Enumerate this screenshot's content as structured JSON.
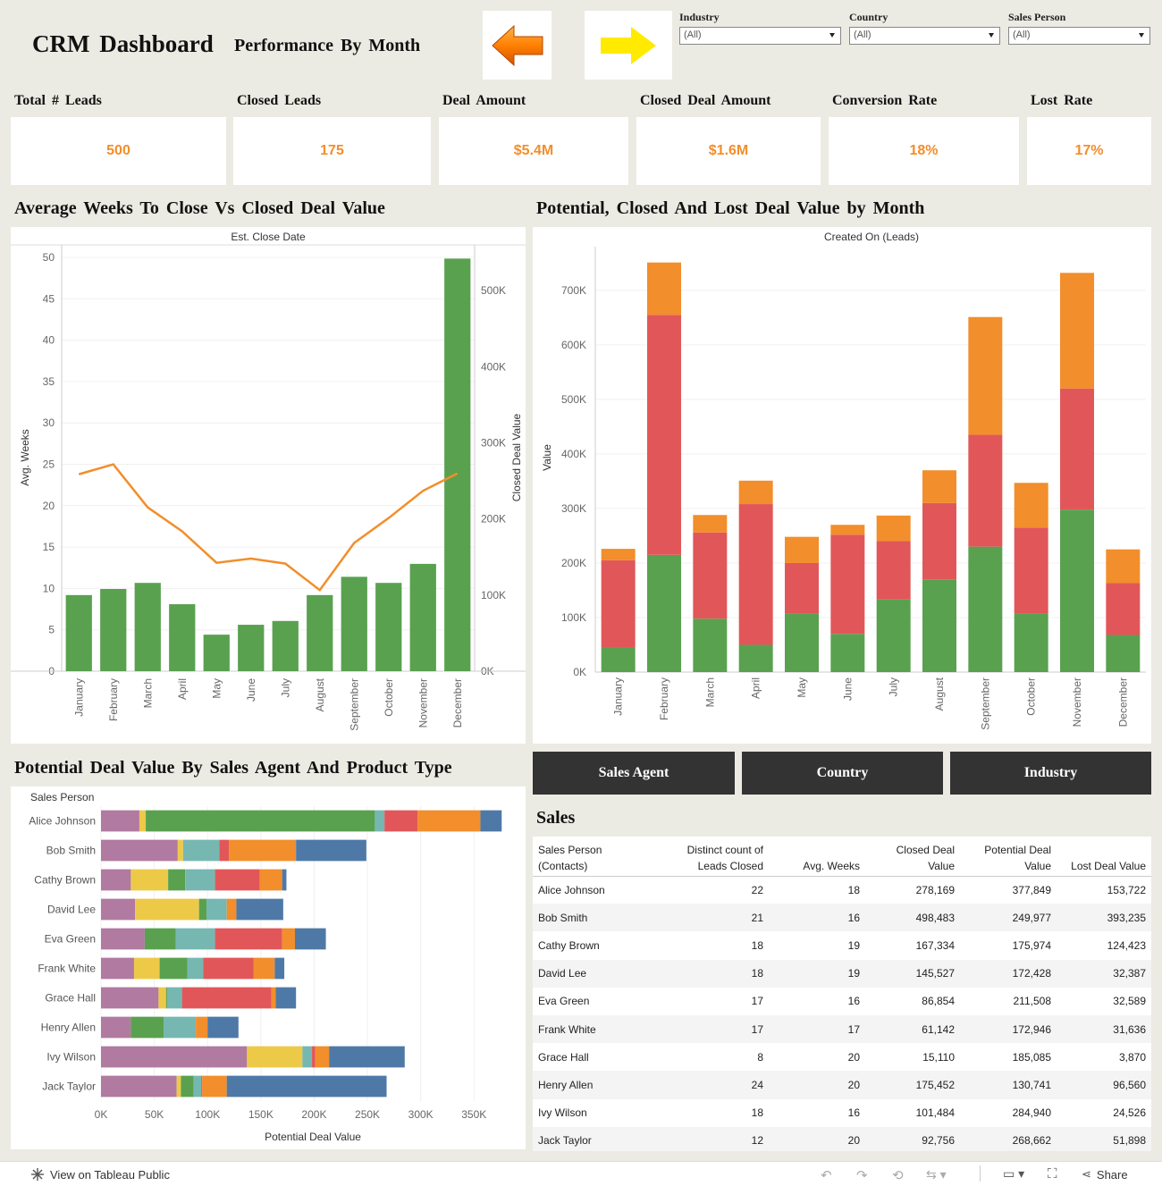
{
  "header": {
    "title": "CRM  Dashboard",
    "subtitle": "Performance  By  Month"
  },
  "nav": {
    "back_icon": "orange-arrow-left-icon",
    "forward_icon": "yellow-arrow-right-icon"
  },
  "filters": [
    {
      "label": "Industry",
      "value": "(All)"
    },
    {
      "label": "Country",
      "value": "(All)"
    },
    {
      "label": "Sales  Person",
      "value": "(All)"
    }
  ],
  "kpis": [
    {
      "label": "Total  #  Leads",
      "value": "500"
    },
    {
      "label": "Closed  Leads",
      "value": "175"
    },
    {
      "label": "Deal  Amount",
      "value": "$5.4M"
    },
    {
      "label": "Closed  Deal  Amount",
      "value": "$1.6M"
    },
    {
      "label": "Conversion  Rate",
      "value": "18%"
    },
    {
      "label": "Lost  Rate",
      "value": "17%"
    }
  ],
  "sections": {
    "weeks_vs_value": "Average  Weeks  To  Close  Vs  Closed  Deal  Value",
    "by_month": "Potential,  Closed  And  Lost  Deal  Value  by  Month",
    "by_agent": "Potential  Deal  Value  By  Sales  Agent  And  Product  Type",
    "sales": "Sales"
  },
  "tabs": [
    "Sales  Agent",
    "Country",
    "Industry"
  ],
  "colors": {
    "accent": "#f28e2b",
    "green": "#59a14f",
    "red": "#e15759",
    "dark": "#333333"
  },
  "chart_data": [
    {
      "type": "bar",
      "title": "Est. Close Date",
      "categories": [
        "January",
        "February",
        "March",
        "April",
        "May",
        "June",
        "July",
        "August",
        "September",
        "October",
        "November",
        "December"
      ],
      "ylabel": "Avg. Weeks",
      "y2label": "Closed Deal Value",
      "ylim": [
        0,
        50
      ],
      "y2lim": [
        0,
        560000
      ],
      "yticks": [
        0,
        5,
        10,
        15,
        20,
        25,
        30,
        35,
        40,
        45,
        50
      ],
      "y2ticks": [
        0,
        100000,
        200000,
        300000,
        400000,
        500000
      ],
      "y2ticklabels": [
        "0K",
        "100K",
        "200K",
        "300K",
        "400K",
        "500K"
      ],
      "series": [
        {
          "name": "Closed Deal Value",
          "type": "bar",
          "axis": "right",
          "color": "#59a14f",
          "values": [
            100000,
            108000,
            116000,
            88000,
            48000,
            61000,
            66000,
            100000,
            124000,
            116000,
            141000,
            542000
          ]
        },
        {
          "name": "Avg. Weeks",
          "type": "line",
          "axis": "left",
          "color": "#f28e2b",
          "values": [
            23.8,
            25.0,
            19.8,
            16.9,
            13.1,
            13.6,
            13.0,
            9.8,
            15.5,
            18.5,
            21.8,
            23.9
          ]
        }
      ]
    },
    {
      "type": "bar",
      "stacked": true,
      "title": "Created On (Leads)",
      "categories": [
        "January",
        "February",
        "March",
        "April",
        "May",
        "June",
        "July",
        "August",
        "September",
        "October",
        "November",
        "December"
      ],
      "ylabel": "Value",
      "ylim": [
        0,
        780000
      ],
      "yticks": [
        0,
        100000,
        200000,
        300000,
        400000,
        500000,
        600000,
        700000
      ],
      "yticklabels": [
        "0K",
        "100K",
        "200K",
        "300K",
        "400K",
        "500K",
        "600K",
        "700K"
      ],
      "series": [
        {
          "name": "Closed",
          "color": "#59a14f",
          "values": [
            45000,
            215000,
            98000,
            50000,
            108000,
            70000,
            133000,
            170000,
            230000,
            108000,
            298000,
            68000
          ]
        },
        {
          "name": "Lost",
          "color": "#e15759",
          "values": [
            160000,
            440000,
            158000,
            258000,
            92000,
            182000,
            107000,
            140000,
            205000,
            157000,
            222000,
            95000
          ]
        },
        {
          "name": "Potential",
          "color": "#f28e2b",
          "values": [
            21000,
            96000,
            32000,
            43000,
            48000,
            18000,
            47000,
            60000,
            216000,
            82000,
            212000,
            62000
          ]
        }
      ]
    },
    {
      "type": "bar",
      "orientation": "horizontal",
      "stacked": true,
      "header": "Sales Person",
      "xlabel": "Potential Deal Value",
      "xlim": [
        0,
        385000
      ],
      "xticks": [
        0,
        50000,
        100000,
        150000,
        200000,
        250000,
        300000,
        350000
      ],
      "xticklabels": [
        "0K",
        "50K",
        "100K",
        "150K",
        "200K",
        "250K",
        "300K",
        "350K"
      ],
      "categories": [
        "Alice Johnson",
        "Bob Smith",
        "Cathy Brown",
        "David Lee",
        "Eva Green",
        "Frank White",
        "Grace Hall",
        "Henry Allen",
        "Ivy Wilson",
        "Jack Taylor"
      ],
      "segment_colors": [
        "#b07aa1",
        "#edc948",
        "#59a14f",
        "#76b7b2",
        "#e15759",
        "#f28e2b",
        "#4e79a7"
      ],
      "series": [
        {
          "color": "#b07aa1",
          "values": [
            36000,
            72000,
            28000,
            32000,
            41000,
            31000,
            54000,
            28000,
            137000,
            71000
          ]
        },
        {
          "color": "#edc948",
          "values": [
            6000,
            5000,
            35000,
            60000,
            0,
            24000,
            7000,
            0,
            52000,
            4000
          ]
        },
        {
          "color": "#59a14f",
          "values": [
            215000,
            0,
            16000,
            7000,
            29000,
            26000,
            1000,
            31000,
            0,
            12000
          ]
        },
        {
          "color": "#76b7b2",
          "values": [
            9000,
            34000,
            28000,
            19000,
            37000,
            15000,
            14000,
            30000,
            9000,
            7000
          ]
        },
        {
          "color": "#e15759",
          "values": [
            31000,
            9000,
            42000,
            0,
            63000,
            47000,
            84000,
            0,
            3000,
            1000
          ]
        },
        {
          "color": "#f28e2b",
          "values": [
            59000,
            63000,
            21000,
            9000,
            12000,
            20000,
            4000,
            11000,
            13000,
            23000
          ]
        },
        {
          "color": "#4e79a7",
          "values": [
            20000,
            66000,
            4000,
            44000,
            29000,
            9000,
            19000,
            29000,
            71000,
            150000
          ]
        }
      ]
    }
  ],
  "sales_table": {
    "columns": [
      "Sales Person (Contacts)",
      "Distinct count of Leads Closed",
      "Avg. Weeks",
      "Closed Deal Value",
      "Potential Deal Value",
      "Lost Deal Value"
    ],
    "rows": [
      [
        "Alice Johnson",
        "22",
        "18",
        "278,169",
        "377,849",
        "153,722"
      ],
      [
        "Bob Smith",
        "21",
        "16",
        "498,483",
        "249,977",
        "393,235"
      ],
      [
        "Cathy Brown",
        "18",
        "19",
        "167,334",
        "175,974",
        "124,423"
      ],
      [
        "David Lee",
        "18",
        "19",
        "145,527",
        "172,428",
        "32,387"
      ],
      [
        "Eva Green",
        "17",
        "16",
        "86,854",
        "211,508",
        "32,589"
      ],
      [
        "Frank White",
        "17",
        "17",
        "61,142",
        "172,946",
        "31,636"
      ],
      [
        "Grace Hall",
        "8",
        "20",
        "15,110",
        "185,085",
        "3,870"
      ],
      [
        "Henry Allen",
        "24",
        "20",
        "175,452",
        "130,741",
        "96,560"
      ],
      [
        "Ivy Wilson",
        "18",
        "16",
        "101,484",
        "284,940",
        "24,526"
      ],
      [
        "Jack Taylor",
        "12",
        "20",
        "92,756",
        "268,662",
        "51,898"
      ]
    ]
  },
  "footer": {
    "view_label": "View on Tableau Public",
    "share_label": "Share"
  }
}
